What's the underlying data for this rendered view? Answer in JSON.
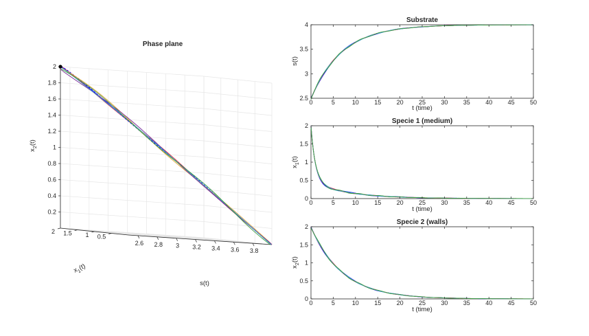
{
  "figure": {
    "background": "#ffffff",
    "colors": {
      "blue": "#0000ff",
      "red": "#e8303a",
      "dashed_blue": "#0000ff",
      "orange": "#e5a33a",
      "purple": "#7a2a9a",
      "teal": "#3da6c4",
      "green": "#40a040",
      "axis": "#262626",
      "grid": "#e6e6e6"
    }
  },
  "chart_data": [
    {
      "type": "line3d",
      "title": "Phase plane",
      "xlabel": "s(t)",
      "ylabel": "x_1(t)",
      "zlabel": "x_2(t)",
      "xticks": [
        "2.6",
        "2.8",
        "3",
        "3.2",
        "3.4",
        "3.6",
        "3.8"
      ],
      "yticks": [
        "0.5",
        "1",
        "1.5",
        "2"
      ],
      "zticks": [
        "0.2",
        "0.4",
        "0.6",
        "0.8",
        "1",
        "1.2",
        "1.4",
        "1.6",
        "1.8",
        "2"
      ],
      "xlim": [
        2.5,
        4.0
      ],
      "ylim": [
        0,
        2
      ],
      "zlim": [
        0,
        2
      ],
      "grid": true,
      "start_marker": {
        "s": 2.5,
        "x1": 2,
        "x2": 2
      },
      "series": [
        {
          "color": "blue",
          "style": "solid",
          "noise": 0.0
        },
        {
          "color": "red",
          "style": "solid",
          "noise": 0.5
        },
        {
          "color": "dashed_blue",
          "style": "dashed",
          "noise": -0.3
        },
        {
          "color": "orange",
          "style": "solid",
          "noise": 0.8
        },
        {
          "color": "purple",
          "style": "solid",
          "noise": -0.9
        },
        {
          "color": "teal",
          "style": "solid",
          "noise": 0.4
        },
        {
          "color": "green",
          "style": "solid",
          "noise": 1.6
        }
      ]
    },
    {
      "type": "line",
      "title": "Substrate",
      "xlabel": "t (time)",
      "ylabel": "s(t)",
      "xlim": [
        0,
        50
      ],
      "ylim": [
        2.5,
        4
      ],
      "xticks": [
        "0",
        "5",
        "10",
        "15",
        "20",
        "25",
        "30",
        "35",
        "40",
        "45",
        "50"
      ],
      "yticks": [
        "2.5",
        "3",
        "3.5",
        "4"
      ],
      "model": "s",
      "s0": 2.5,
      "s_inf": 4.0,
      "tau": 7.0
    },
    {
      "type": "line",
      "title": "Specie 1 (medium)",
      "xlabel": "t (time)",
      "ylabel": "x_1(t)",
      "xlim": [
        0,
        50
      ],
      "ylim": [
        0,
        2
      ],
      "xticks": [
        "0",
        "5",
        "10",
        "15",
        "20",
        "25",
        "30",
        "35",
        "40",
        "45",
        "50"
      ],
      "yticks": [
        "0",
        "0.5",
        "1",
        "1.5",
        "2"
      ],
      "model": "x1",
      "x0": 2.0,
      "fast_tau": 1.0,
      "slow_tau": 8.5,
      "slow_amp": 0.45
    },
    {
      "type": "line",
      "title": "Specie 2 (walls)",
      "xlabel": "t (time)",
      "ylabel": "x_2(t)",
      "xlim": [
        0,
        50
      ],
      "ylim": [
        0,
        2
      ],
      "xticks": [
        "0",
        "5",
        "10",
        "15",
        "20",
        "25",
        "30",
        "35",
        "40",
        "45",
        "50"
      ],
      "yticks": [
        "0",
        "0.5",
        "1",
        "1.5",
        "2"
      ],
      "model": "x2",
      "x0": 2.0,
      "tau": 7.0
    }
  ]
}
